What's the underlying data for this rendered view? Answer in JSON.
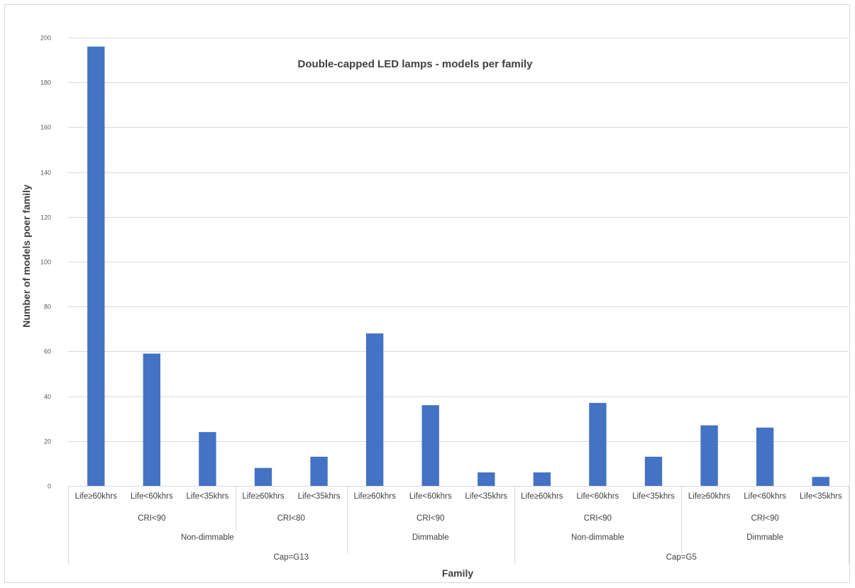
{
  "chart_data": {
    "type": "bar",
    "title": "Double-capped LED lamps - models per family",
    "xlabel": "Family",
    "ylabel": "Number of models poer family",
    "ylim": [
      0,
      200
    ],
    "y_ticks": [
      0,
      20,
      40,
      60,
      80,
      100,
      120,
      140,
      160,
      180,
      200
    ],
    "grid": true,
    "legend": "none",
    "bar_color": "#4472C4",
    "categories": [
      "Life≥60khrs",
      "Life<60khrs",
      "Life<35khrs",
      "Life≥60khrs",
      "Life<35khrs",
      "Life≥60khrs",
      "Life<60khrs",
      "Life<35khrs",
      "Life≥60khrs",
      "Life<60khrs",
      "Life<35khrs",
      "Life≥60khrs",
      "Life<60khrs",
      "Life<35khrs"
    ],
    "values": [
      196,
      59,
      24,
      8,
      13,
      68,
      36,
      6,
      6,
      37,
      13,
      27,
      26,
      4
    ],
    "group_levels": [
      [
        {
          "label": "CRI<90",
          "span": 3
        },
        {
          "label": "CRI<80",
          "span": 2
        },
        {
          "label": "CRI<90",
          "span": 3
        },
        {
          "label": "CRI<90",
          "span": 3
        },
        {
          "label": "CRI<90",
          "span": 3
        }
      ],
      [
        {
          "label": "Non-dimmable",
          "span": 5
        },
        {
          "label": "Dimmable",
          "span": 3
        },
        {
          "label": "Non-dimmable",
          "span": 3
        },
        {
          "label": "Dimmable",
          "span": 3
        }
      ],
      [
        {
          "label": "Cap=G13",
          "span": 8
        },
        {
          "label": "Cap=G5",
          "span": 6
        }
      ]
    ]
  }
}
